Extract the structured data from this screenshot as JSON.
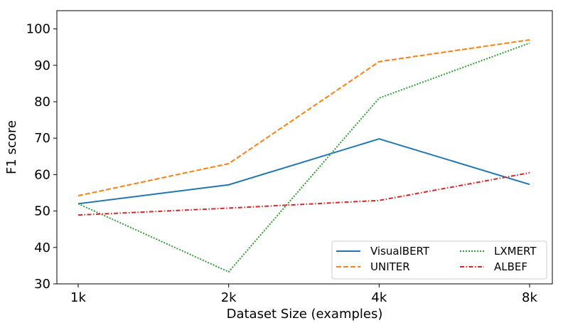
{
  "chart_data": {
    "type": "line",
    "title": "",
    "xlabel": "Dataset Size (examples)",
    "ylabel": "F1 score",
    "categories": [
      "1k",
      "2k",
      "4k",
      "8k"
    ],
    "ylim": [
      30,
      105
    ],
    "yticks": [
      30,
      40,
      50,
      60,
      70,
      80,
      90,
      100
    ],
    "legend_position": "lower-right",
    "legend_columns": 2,
    "series": [
      {
        "name": "VisualBERT",
        "values": [
          52,
          57.2,
          69.8,
          57.3
        ],
        "color": "#1f77b4",
        "dash": "solid"
      },
      {
        "name": "UNITER",
        "values": [
          54.2,
          63,
          91,
          97
        ],
        "color": "#ff7f0e",
        "dash": "dashed"
      },
      {
        "name": "LXMERT",
        "values": [
          52,
          33.3,
          81,
          96.1
        ],
        "color": "#2ca02c",
        "dash": "dotted"
      },
      {
        "name": "ALBEF",
        "values": [
          48.9,
          50.8,
          52.9,
          60.5
        ],
        "color": "#d62728",
        "dash": "dashdot"
      }
    ]
  }
}
